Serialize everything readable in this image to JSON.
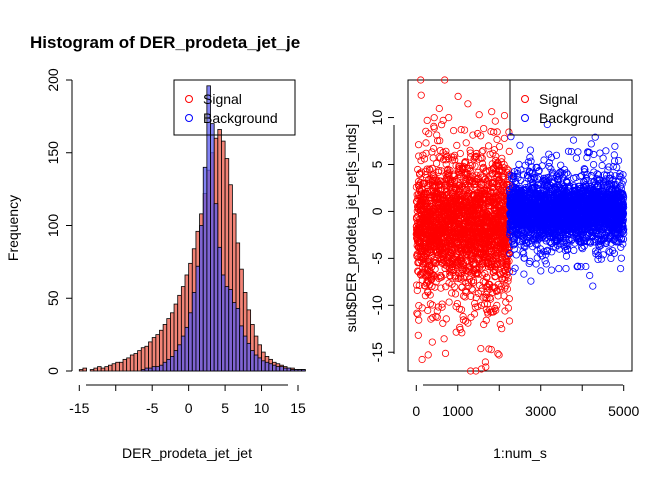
{
  "chart_data": [
    {
      "type": "histogram",
      "title": "Histogram of DER_prodeta_jet_je",
      "xlabel": "DER_prodeta_jet_jet",
      "ylabel": "Frequency",
      "xlim": [
        -16,
        15
      ],
      "ylim": [
        0,
        200
      ],
      "xticks": [
        -15,
        -10,
        -5,
        0,
        5,
        10,
        15
      ],
      "xtick_labels": [
        "-15",
        "",
        "-5",
        "0",
        "5",
        "10",
        "15"
      ],
      "yticks": [
        0,
        50,
        100,
        150,
        200
      ],
      "bin_width": 0.5,
      "legend": {
        "position": "top-right",
        "entries": [
          "Signal",
          "Background"
        ]
      },
      "series": [
        {
          "name": "Signal",
          "color": "#f08070",
          "bin_start": -15,
          "counts": [
            1,
            2,
            0,
            1,
            2,
            3,
            2,
            3,
            4,
            5,
            6,
            6,
            8,
            9,
            11,
            12,
            14,
            16,
            17,
            20,
            23,
            25,
            28,
            32,
            36,
            40,
            46,
            52,
            58,
            66,
            74,
            84,
            96,
            108,
            122,
            138,
            150,
            160,
            166,
            158,
            146,
            128,
            108,
            88,
            70,
            54,
            42,
            32,
            24,
            18,
            13,
            10,
            8,
            6,
            5,
            4,
            3,
            2,
            2,
            1,
            1,
            1
          ]
        },
        {
          "name": "Background",
          "color": "#6a6af0",
          "bin_start": -15,
          "counts": [
            0,
            0,
            0,
            0,
            0,
            0,
            0,
            0,
            0,
            0,
            0,
            0,
            0,
            0,
            0,
            0,
            0,
            1,
            2,
            2,
            3,
            3,
            4,
            6,
            8,
            10,
            14,
            18,
            24,
            30,
            40,
            54,
            72,
            100,
            140,
            196,
            170,
            115,
            85,
            66,
            58,
            56,
            47,
            43,
            31,
            24,
            19,
            14,
            11,
            9,
            7,
            6,
            5,
            4,
            3,
            3,
            2,
            2,
            1,
            1,
            1,
            1
          ]
        }
      ]
    },
    {
      "type": "scatter",
      "xlabel": "1:num_s",
      "ylabel": "sub$DER_prodeta_jet_jet[s_inds]",
      "xlim": [
        -200,
        5200
      ],
      "ylim": [
        -17,
        14
      ],
      "xticks": [
        0,
        1000,
        3000,
        5000
      ],
      "xtick_labels": [
        "0",
        "1000",
        "3000",
        "5000"
      ],
      "extra_x_ticks": [
        2000,
        4000
      ],
      "yticks": [
        -15,
        -10,
        -5,
        0,
        5,
        10
      ],
      "legend": {
        "position": "top-right",
        "entries": [
          "Signal",
          "Background"
        ]
      },
      "series": [
        {
          "name": "Signal",
          "color": "#ff0000",
          "x_range": [
            1,
            2250
          ],
          "center": -1.5,
          "spread": 4.2,
          "y_min": -17,
          "y_max": 14
        },
        {
          "name": "Background",
          "color": "#0000ff",
          "x_range": [
            2251,
            5000
          ],
          "center": 0,
          "spread": 2.0,
          "y_min": -12,
          "y_max": 10
        }
      ]
    }
  ]
}
